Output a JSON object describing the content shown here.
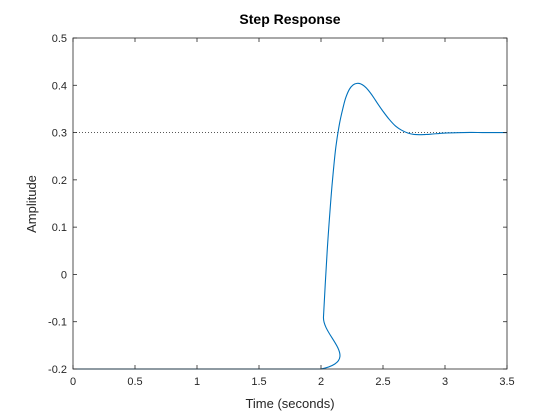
{
  "chart_data": {
    "type": "line",
    "title": "Step Response",
    "xlabel": "Time (seconds)",
    "ylabel": "Amplitude",
    "xlim": [
      0,
      3.5
    ],
    "ylim": [
      -0.2,
      0.5
    ],
    "grid": false,
    "x_ticks": [
      0,
      0.5,
      1,
      1.5,
      2,
      2.5,
      3,
      3.5
    ],
    "x_tick_labels": [
      "0",
      "0.5",
      "1",
      "1.5",
      "2",
      "2.5",
      "3",
      "3.5"
    ],
    "y_ticks": [
      -0.2,
      -0.1,
      0,
      0.1,
      0.2,
      0.3,
      0.4,
      0.5
    ],
    "y_tick_labels": [
      "-0.2",
      "-0.1",
      "0",
      "0.1",
      "0.2",
      "0.3",
      "0.4",
      "0.5"
    ],
    "steady_state_value": 0.3,
    "line_color": "#0072BD",
    "reference_line_color": "#404040",
    "series": [
      {
        "x": [
          0,
          2.0,
          2.02,
          2.05,
          2.08,
          2.1,
          2.12,
          2.15,
          2.18,
          2.2,
          2.23,
          2.26,
          2.29,
          2.32,
          2.35,
          2.38,
          2.42,
          2.46,
          2.5,
          2.55,
          2.6,
          2.65,
          2.7,
          2.75,
          2.8,
          2.85,
          2.9,
          2.95,
          3.0,
          3.1,
          3.2,
          3.3,
          3.4,
          3.5
        ],
        "y": [
          -0.2,
          -0.2,
          -0.09,
          0.05,
          0.16,
          0.22,
          0.27,
          0.32,
          0.355,
          0.374,
          0.392,
          0.401,
          0.404,
          0.403,
          0.398,
          0.39,
          0.376,
          0.36,
          0.345,
          0.328,
          0.314,
          0.305,
          0.299,
          0.296,
          0.2955,
          0.296,
          0.297,
          0.298,
          0.299,
          0.2998,
          0.3002,
          0.3001,
          0.3,
          0.3
        ]
      }
    ]
  }
}
